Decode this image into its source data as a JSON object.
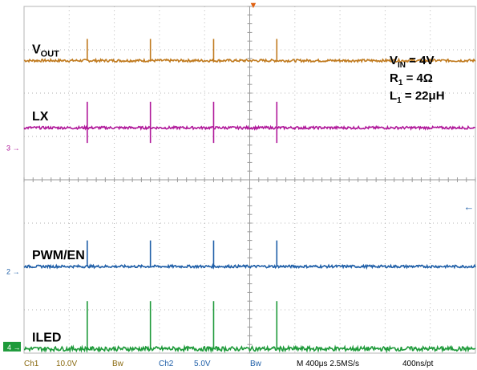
{
  "chart_data": {
    "type": "line",
    "title": "",
    "xlabel": "",
    "ylabel": "",
    "grid": true,
    "grid_divisions": {
      "x": 10,
      "y": 8
    },
    "time_per_div_us": 400,
    "pulse_times_us": [
      560,
      1120,
      1680,
      2240
    ],
    "series": [
      {
        "name": "VOUT",
        "label_main": "V",
        "label_sub": "OUT",
        "color": "#c07a1e",
        "level_div": 6.75,
        "spike_div": 0.5,
        "noise_div": 0.03
      },
      {
        "name": "LX",
        "label_main": "LX",
        "label_sub": "",
        "color": "#b0189a",
        "level_div": 5.2,
        "spike_div": 0.6,
        "dip_div": 0.35,
        "noise_div": 0.03
      },
      {
        "name": "PWM/EN",
        "label_main": "PWM/EN",
        "label_sub": "",
        "color": "#1f5fa8",
        "level_div": 2.0,
        "spike_div": 0.6,
        "noise_div": 0.03
      },
      {
        "name": "ILED",
        "label_main": "ILED",
        "label_sub": "",
        "color": "#1e9a3a",
        "level_div": 0.1,
        "spike_div": 1.1,
        "noise_div": 0.05
      }
    ],
    "annotations": [
      {
        "main": "V",
        "sub": "IN",
        "rest": " = 4V"
      },
      {
        "main": "R",
        "sub": "1",
        "rest": " = 4Ω"
      },
      {
        "main": "L",
        "sub": "1",
        "rest": " = 22μH"
      }
    ],
    "channel_markers": [
      {
        "label": "3",
        "color": "#b0189a"
      },
      {
        "label": "2",
        "color": "#1f5fa8"
      },
      {
        "label": "4",
        "color": "#1e9a3a"
      }
    ]
  },
  "status_bar": {
    "ch1_label": "Ch1",
    "ch1_scale": "10.0V",
    "ch1_bw": "Bw",
    "ch2_label": "Ch2",
    "ch2_scale": "5.0V",
    "ch2_bw": "Bw",
    "timebase": "M 400μs 2.5MS/s",
    "resolution": "400ns/pt"
  },
  "colors": {
    "grid": "#b4b4b4",
    "status_ch1": "#8a6a10",
    "status_ch2": "#1f5fa8",
    "status_text": "#000000"
  }
}
